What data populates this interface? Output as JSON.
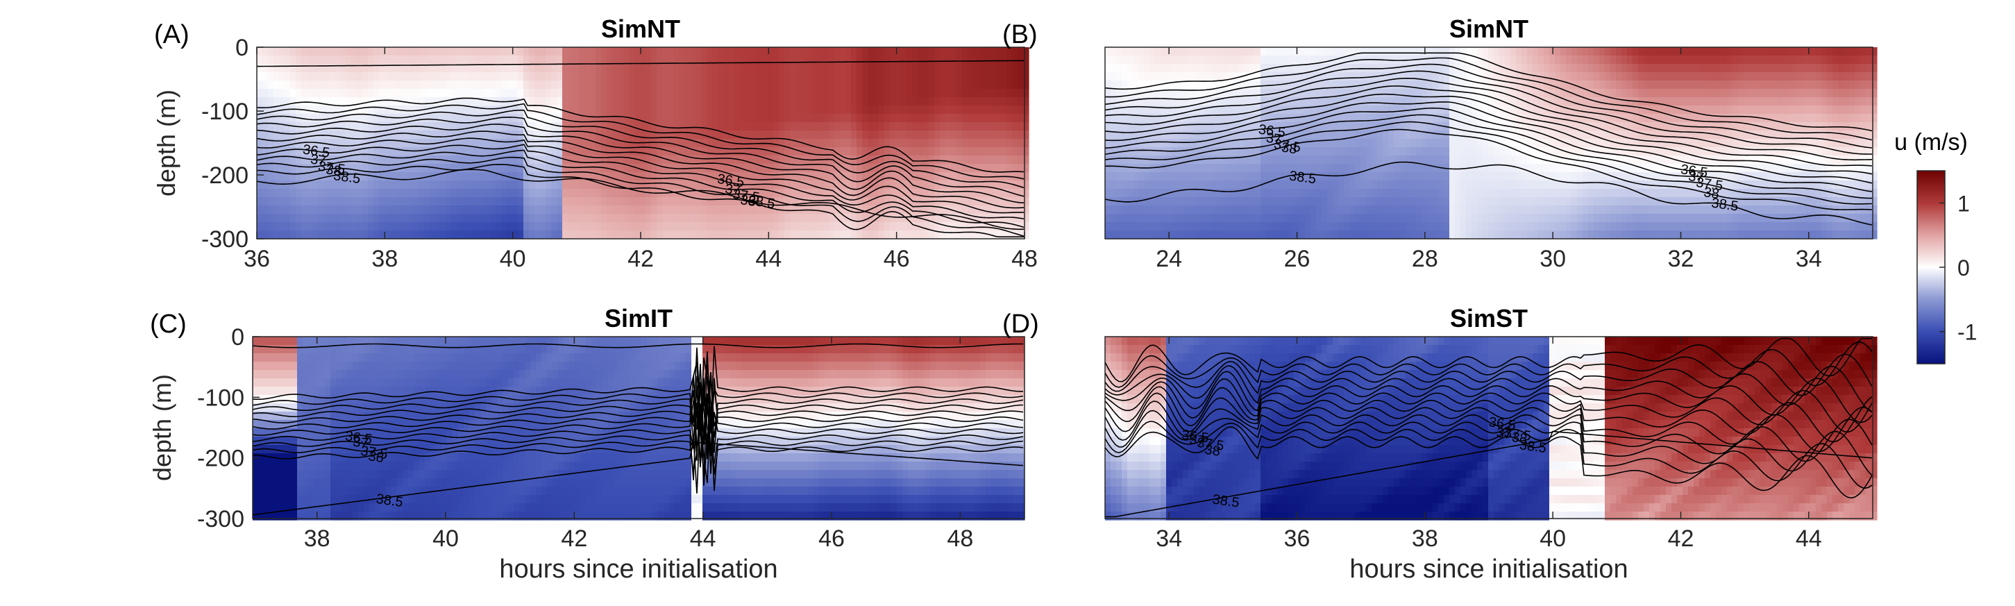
{
  "figure": {
    "xlabel": "hours since initialisation",
    "ylabel": "depth (m)",
    "colorbar": {
      "label": "u (m/s)",
      "ticks": [
        -1,
        0,
        1
      ],
      "tick_labels": [
        "-1",
        "0",
        "1"
      ],
      "range": [
        -1.5,
        1.5
      ],
      "colormap": [
        "#08127d",
        "#3b4fb4",
        "#8f9bd4",
        "#ffffff",
        "#e3a7a7",
        "#b03a3a",
        "#6e0202"
      ]
    }
  },
  "chart_data": [
    {
      "type": "heatmap",
      "panel_label": "(A)",
      "title": "SimNT",
      "xlabel": "",
      "ylabel": "depth (m)",
      "xlim": [
        36,
        48
      ],
      "ylim": [
        -300,
        0
      ],
      "x_ticks": [
        36,
        38,
        40,
        42,
        44,
        46,
        48
      ],
      "y_ticks": [
        0,
        -100,
        -200,
        -300
      ],
      "contour_labels": [
        "36.5",
        "37",
        "37.5",
        "38",
        "38.5"
      ]
    },
    {
      "type": "heatmap",
      "panel_label": "(B)",
      "title": "SimNT",
      "xlabel": "",
      "ylabel": "",
      "xlim": [
        23,
        35
      ],
      "ylim": [
        -300,
        0
      ],
      "x_ticks": [
        24,
        26,
        28,
        30,
        32,
        34
      ],
      "y_ticks": [],
      "contour_labels": [
        "36.5",
        "37",
        "37.5",
        "38",
        "38.5"
      ]
    },
    {
      "type": "heatmap",
      "panel_label": "(C)",
      "title": "SimIT",
      "xlabel": "hours since initialisation",
      "ylabel": "depth (m)",
      "xlim": [
        37,
        49
      ],
      "ylim": [
        -300,
        0
      ],
      "x_ticks": [
        38,
        40,
        42,
        44,
        46,
        48
      ],
      "y_ticks": [
        0,
        -100,
        -200,
        -300
      ],
      "contour_labels": [
        "36.5",
        "37",
        "37.5",
        "38",
        "38.5"
      ]
    },
    {
      "type": "heatmap",
      "panel_label": "(D)",
      "title": "SimST",
      "xlabel": "hours since initialisation",
      "ylabel": "",
      "xlim": [
        33,
        45
      ],
      "ylim": [
        -300,
        0
      ],
      "x_ticks": [
        34,
        36,
        38,
        40,
        42,
        44
      ],
      "y_ticks": [],
      "contour_labels": [
        "36.5",
        "37",
        "37.5",
        "38",
        "38.5"
      ]
    }
  ]
}
